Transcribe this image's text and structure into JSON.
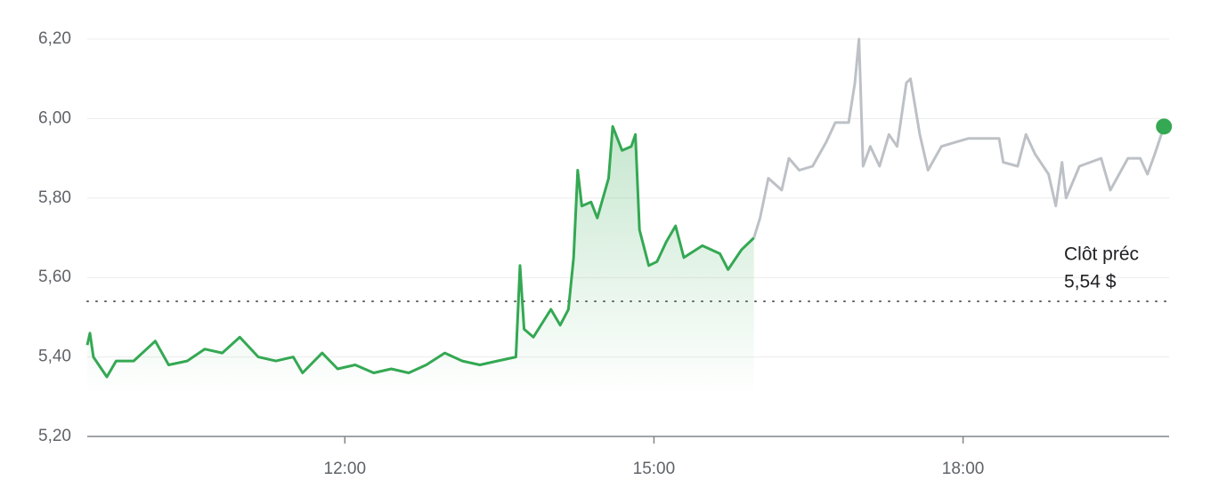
{
  "chart_data": {
    "type": "line",
    "xlim": [
      9.5,
      20
    ],
    "ylim": [
      5.2,
      6.2
    ],
    "xticks": [
      {
        "value": 12,
        "label": "12:00"
      },
      {
        "value": 15,
        "label": "15:00"
      },
      {
        "value": 18,
        "label": "18:00"
      }
    ],
    "yticks": [
      {
        "value": 5.2,
        "label": "5,20"
      },
      {
        "value": 5.4,
        "label": "5,40"
      },
      {
        "value": 5.6,
        "label": "5,60"
      },
      {
        "value": 5.8,
        "label": "5,80"
      },
      {
        "value": 6.0,
        "label": "6,00"
      },
      {
        "value": 6.2,
        "label": "6,20"
      }
    ],
    "grid": true,
    "previous_close": {
      "name": "Clôt préc",
      "value": 5.54,
      "label": "5,54 $"
    },
    "series": [
      {
        "color": "#34a853",
        "area": true,
        "x": [
          9.5,
          9.526,
          9.56,
          9.69,
          9.78,
          9.95,
          10.16,
          10.29,
          10.47,
          10.64,
          10.81,
          10.98,
          11.16,
          11.33,
          11.5,
          11.59,
          11.78,
          11.93,
          12.1,
          12.28,
          12.45,
          12.62,
          12.79,
          12.97,
          13.14,
          13.31,
          13.48,
          13.66,
          13.7,
          13.74,
          13.83,
          14.0,
          14.09,
          14.17,
          14.22,
          14.26,
          14.3,
          14.39,
          14.45,
          14.56,
          14.6,
          14.69,
          14.78,
          14.82,
          14.86,
          14.95,
          15.03,
          15.12,
          15.21,
          15.29,
          15.47,
          15.64,
          15.72,
          15.85,
          15.97
        ],
        "values": [
          5.43,
          5.46,
          5.4,
          5.35,
          5.39,
          5.39,
          5.44,
          5.38,
          5.39,
          5.42,
          5.41,
          5.45,
          5.4,
          5.39,
          5.4,
          5.36,
          5.41,
          5.37,
          5.38,
          5.36,
          5.37,
          5.36,
          5.38,
          5.41,
          5.39,
          5.38,
          5.39,
          5.4,
          5.63,
          5.47,
          5.45,
          5.52,
          5.48,
          5.52,
          5.65,
          5.87,
          5.78,
          5.79,
          5.75,
          5.85,
          5.98,
          5.92,
          5.93,
          5.96,
          5.72,
          5.63,
          5.64,
          5.69,
          5.73,
          5.65,
          5.68,
          5.66,
          5.62,
          5.67,
          5.7
        ]
      },
      {
        "color": "#bdc1c6",
        "area": false,
        "x": [
          15.97,
          16.03,
          16.11,
          16.24,
          16.31,
          16.41,
          16.54,
          16.67,
          16.76,
          16.89,
          16.95,
          16.99,
          17.03,
          17.1,
          17.19,
          17.28,
          17.36,
          17.45,
          17.49,
          17.58,
          17.66,
          17.79,
          17.92,
          18.05,
          18.35,
          18.39,
          18.53,
          18.61,
          18.7,
          18.83,
          18.9,
          18.96,
          19.0,
          19.13,
          19.34,
          19.43,
          19.6,
          19.72,
          19.79,
          19.86,
          19.95
        ],
        "values": [
          5.7,
          5.75,
          5.85,
          5.82,
          5.9,
          5.87,
          5.88,
          5.94,
          5.99,
          5.99,
          6.09,
          6.2,
          5.88,
          5.93,
          5.88,
          5.96,
          5.93,
          6.09,
          6.1,
          5.96,
          5.87,
          5.93,
          5.94,
          5.95,
          5.95,
          5.89,
          5.88,
          5.96,
          5.91,
          5.86,
          5.78,
          5.89,
          5.8,
          5.88,
          5.9,
          5.82,
          5.9,
          5.9,
          5.86,
          5.91,
          5.98
        ]
      }
    ],
    "last_point_color": "#34a853"
  }
}
